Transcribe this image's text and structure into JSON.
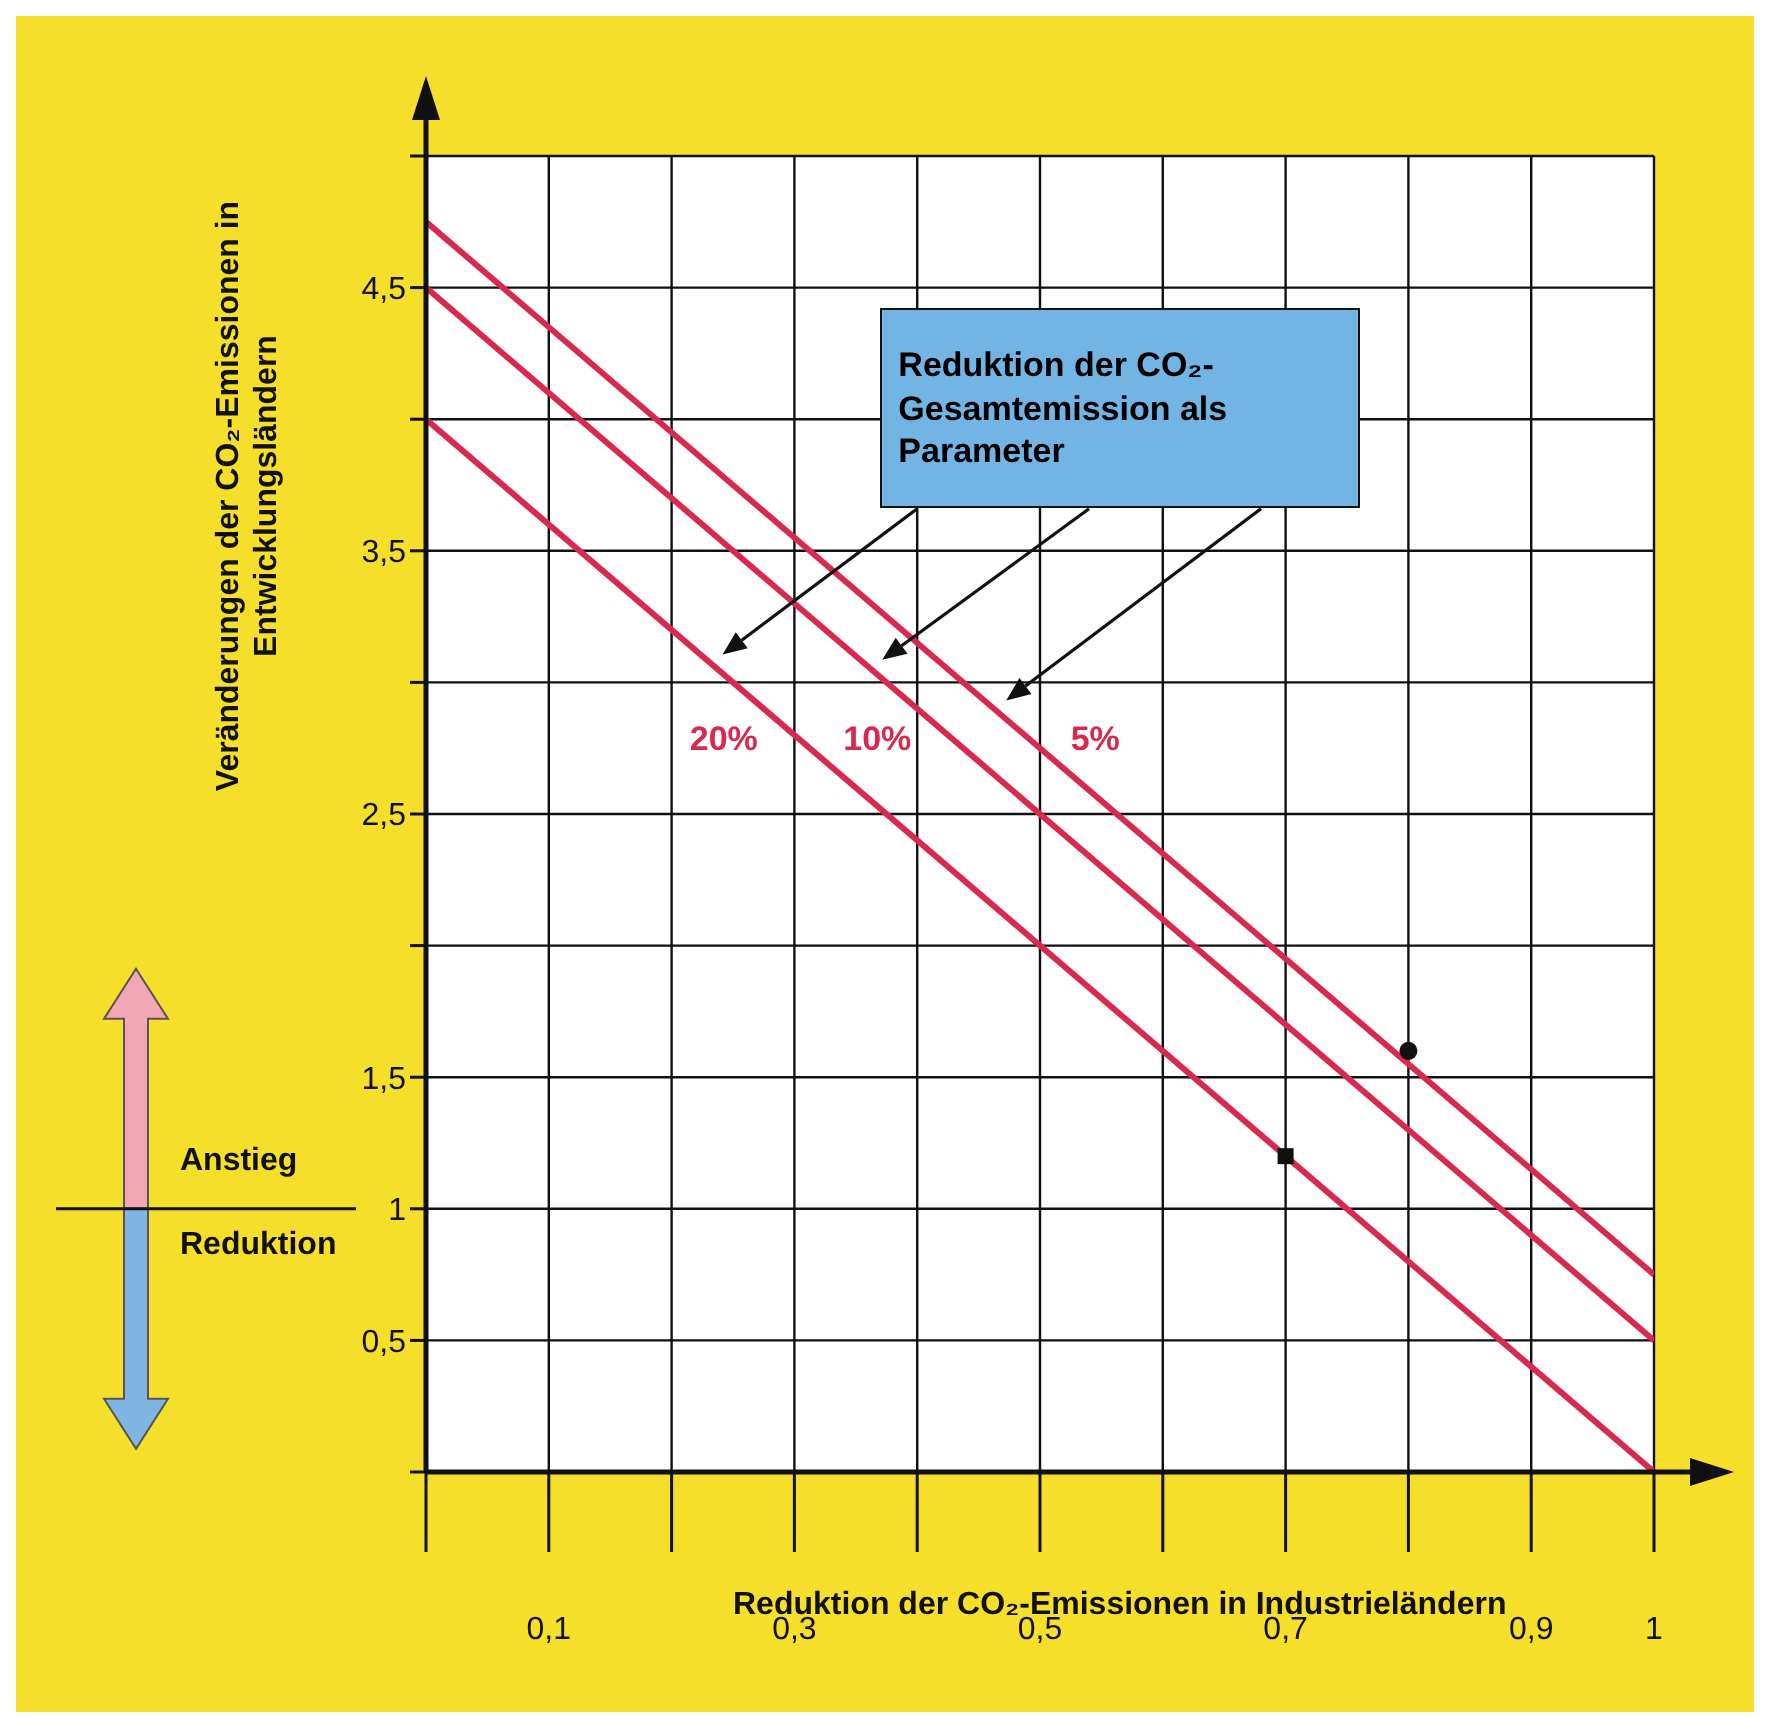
{
  "chart_data": {
    "type": "line",
    "xlabel": "Reduktion der CO₂-Emissionen in Industrieländern",
    "ylabel": "Veränderungen der CO₂-Emissionen in Entwicklungsländern",
    "xlim": [
      0,
      1
    ],
    "ylim": [
      0,
      5
    ],
    "xticks": [
      {
        "value": 0,
        "label": null
      },
      {
        "value": 0.1,
        "label": "0,1"
      },
      {
        "value": 0.2,
        "label": null
      },
      {
        "value": 0.3,
        "label": "0,3"
      },
      {
        "value": 0.4,
        "label": null
      },
      {
        "value": 0.5,
        "label": "0,5"
      },
      {
        "value": 0.6,
        "label": null
      },
      {
        "value": 0.7,
        "label": "0,7"
      },
      {
        "value": 0.8,
        "label": null
      },
      {
        "value": 0.9,
        "label": "0,9"
      },
      {
        "value": 1,
        "label": "1"
      }
    ],
    "yticks": [
      {
        "value": 0,
        "label": null
      },
      {
        "value": 0.5,
        "label": "0,5"
      },
      1,
      {
        "value": 1.5,
        "label": "1,5"
      },
      {
        "value": 2,
        "label": null
      },
      {
        "value": 2.5,
        "label": "2,5"
      },
      {
        "value": 3,
        "label": null
      },
      {
        "value": 3.5,
        "label": "3,5"
      },
      {
        "value": 4,
        "label": null
      },
      {
        "value": 4.5,
        "label": "4,5"
      },
      {
        "value": 5,
        "label": null
      }
    ],
    "grid": true,
    "series": [
      {
        "name": "20%",
        "color": "#d8294f",
        "x": [
          0,
          1
        ],
        "values": [
          4,
          0
        ]
      },
      {
        "name": "10%",
        "color": "#d8294f",
        "x": [
          0,
          1
        ],
        "values": [
          4.5,
          0.5
        ]
      },
      {
        "name": "5%",
        "color": "#d8294f",
        "x": [
          0,
          1
        ],
        "values": [
          4.75,
          0.75
        ]
      },
      {
        "type": "scatter",
        "color": "#111111",
        "marker": "circle",
        "x": [
          0.8
        ],
        "values": [
          1.6
        ]
      },
      {
        "type": "scatter",
        "color": "#111111",
        "marker": "square",
        "x": [
          0.7
        ],
        "values": [
          1.2
        ]
      }
    ],
    "annotations": [
      "Reduktion der CO₂-Gesamtemission als Parameter",
      "Anstieg",
      "Reduktion"
    ]
  }
}
